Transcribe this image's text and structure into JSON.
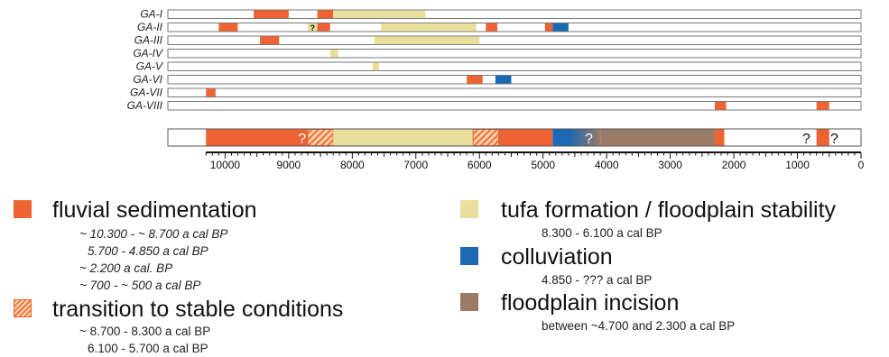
{
  "colors": {
    "fluvial": "#ed6334",
    "tufa": "#e8df9c",
    "colluviation": "#1b68b3",
    "incision": "#9b7a68",
    "transition_base": "#ffd1a8",
    "transition_stripe": "#ed6334",
    "bar_outline": "#555555"
  },
  "chart_data": {
    "type": "timeline",
    "x_axis": {
      "domain": [
        10900,
        0
      ],
      "direction": "reversed",
      "unit": "a cal BP",
      "major_ticks": [
        10000,
        9000,
        8000,
        7000,
        6000,
        5000,
        4000,
        3000,
        2000,
        1000,
        0
      ],
      "major_tick_labels": [
        "10000",
        "9000",
        "8000",
        "7000",
        "6000",
        "5000",
        "4000",
        "3000",
        "2000",
        "1000",
        "0"
      ],
      "minor_tick_step": 100
    },
    "sites": [
      {
        "name": "GA-I",
        "segments": [
          {
            "type": "fluvial",
            "start": 9550,
            "end": 9000
          },
          {
            "type": "fluvial",
            "start": 8550,
            "end": 8300
          },
          {
            "type": "tufa",
            "start": 8300,
            "end": 6850
          }
        ]
      },
      {
        "name": "GA-II",
        "segments": [
          {
            "type": "fluvial",
            "start": 10100,
            "end": 9800
          },
          {
            "type": "tufa",
            "start": 8700,
            "end": 8550,
            "label": "?"
          },
          {
            "type": "fluvial",
            "start": 8550,
            "end": 8350
          },
          {
            "type": "tufa",
            "start": 7550,
            "end": 6050
          },
          {
            "type": "fluvial",
            "start": 5900,
            "end": 5720
          },
          {
            "type": "fluvial",
            "start": 4970,
            "end": 4850
          },
          {
            "type": "colluviation",
            "start": 4850,
            "end": 4600
          }
        ]
      },
      {
        "name": "GA-III",
        "segments": [
          {
            "type": "fluvial",
            "start": 9450,
            "end": 9150
          },
          {
            "type": "tufa",
            "start": 7650,
            "end": 6000
          }
        ]
      },
      {
        "name": "GA-IV",
        "segments": [
          {
            "type": "tufa",
            "start": 8350,
            "end": 8220
          }
        ]
      },
      {
        "name": "GA-V",
        "segments": [
          {
            "type": "tufa",
            "start": 7680,
            "end": 7580
          }
        ]
      },
      {
        "name": "GA-VI",
        "segments": [
          {
            "type": "fluvial",
            "start": 6200,
            "end": 5950
          },
          {
            "type": "colluviation",
            "start": 5750,
            "end": 5500
          }
        ]
      },
      {
        "name": "GA-VII",
        "segments": [
          {
            "type": "fluvial",
            "start": 10300,
            "end": 10150
          }
        ]
      },
      {
        "name": "GA-VIII",
        "segments": [
          {
            "type": "fluvial",
            "start": 2300,
            "end": 2120
          },
          {
            "type": "fluvial",
            "start": 700,
            "end": 500
          }
        ]
      }
    ],
    "summary": {
      "segments": [
        {
          "type": "fluvial",
          "start": 10300,
          "end": 8700
        },
        {
          "type": "transition",
          "start": 8700,
          "end": 8300
        },
        {
          "type": "tufa",
          "start": 8300,
          "end": 6100
        },
        {
          "type": "transition",
          "start": 6100,
          "end": 5700
        },
        {
          "type": "fluvial",
          "start": 5700,
          "end": 4850
        },
        {
          "type": "colluviation_fade",
          "start": 4850,
          "end": 4100
        },
        {
          "type": "incision_fade",
          "start": 4100,
          "end": 2300
        },
        {
          "type": "fluvial",
          "start": 2300,
          "end": 2150
        },
        {
          "type": "fluvial",
          "start": 700,
          "end": 500
        }
      ],
      "question_marks": [
        {
          "at": 8790,
          "color": "white"
        },
        {
          "at": 4280,
          "color": "white"
        },
        {
          "at": 860,
          "color": "black"
        },
        {
          "at": 420,
          "color": "black"
        }
      ]
    },
    "legend": [
      {
        "key": "fluvial",
        "label": "fluvial sedimentation",
        "notes": [
          "~ 10.300 - ~ 8.700 a cal BP",
          "5.700 - 4.850 a cal BP",
          "~ 2.200 a cal. BP",
          "~ 700 - ~ 500 a cal BP"
        ]
      },
      {
        "key": "transition",
        "label": "transition to stable conditions",
        "notes": [
          "~ 8.700 - 8.300 a cal BP",
          "6.100 - 5.700 a cal BP"
        ]
      },
      {
        "key": "tufa",
        "label": "tufa formation / floodplain stability",
        "notes": [
          "8.300 - 6.100 a cal BP"
        ]
      },
      {
        "key": "colluviation",
        "label": "colluviation",
        "notes": [
          "4.850 - ??? a cal BP"
        ]
      },
      {
        "key": "incision",
        "label": "floodplain incision",
        "notes": [
          "between ~4.700 and 2.300 a cal BP"
        ]
      }
    ]
  }
}
